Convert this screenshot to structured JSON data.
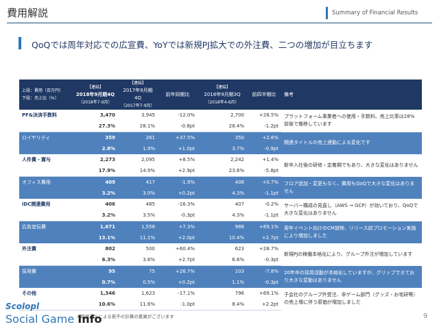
{
  "header": {
    "title": "費用解説",
    "summary_label": "Summary of Financial Results"
  },
  "headline": "QoQでは周年対応での広宣費、YoYでは新規PJ拡大での外注費、二つの増加が目立ちます",
  "table": {
    "columns": {
      "label_line1": "上段：費用（百万円）",
      "label_line2": "下段：売上比（%）",
      "c1_tag": "【連結】",
      "c1_title": "2018年9月期4Q",
      "c1_sub": "（2018年7-9月）",
      "c2_tag": "【連結】",
      "c2_title": "2017年9月期4Q",
      "c2_sub": "（2017年7-9月）",
      "c3_title": "前年同期比",
      "c4_tag": "【連結】",
      "c4_title": "2018年9月期3Q",
      "c4_sub": "（2018年4-6月）",
      "c5_title": "前四半期比",
      "c6_title": "備考"
    },
    "rows": [
      {
        "name": "PF&決済手数料",
        "cur": "3,470",
        "cur_pct": "27.3%",
        "prev": "3,945",
        "prev_pct": "28.1%",
        "yoy": "-12.0%",
        "yoy_pt": "-0.8pt",
        "q3": "2,700",
        "q3_pct": "28.4%",
        "qoq": "+28.5%",
        "qoq_pt": "-1.2pt",
        "note": "プラットフォーム事業者への使用・手数料、売上比率は28%前後で推移しています"
      },
      {
        "name": "ロイヤリティ",
        "cur": "359",
        "cur_pct": "2.8%",
        "prev": "261",
        "prev_pct": "1.9%",
        "yoy": "+37.5%",
        "yoy_pt": "+1.0pt",
        "q3": "350",
        "q3_pct": "3.7%",
        "qoq": "+2.6%",
        "qoq_pt": "-0.9pt",
        "note": "開連タイトルの売上連動による変化です"
      },
      {
        "name": "人件費・賞与",
        "cur": "2,273",
        "cur_pct": "17.9%",
        "prev": "2,095",
        "prev_pct": "14.9%",
        "yoy": "+8.5%",
        "yoy_pt": "+2.9pt",
        "q3": "2,242",
        "q3_pct": "23.6%",
        "qoq": "+1.4%",
        "qoq_pt": "-5.8pt",
        "note": "新卒入社後の研修・定着期でもあり、大きな変化はありません"
      },
      {
        "name": "オフィス費用",
        "cur": "409",
        "cur_pct": "3.2%",
        "prev": "417",
        "prev_pct": "3.0%",
        "yoy": "-1.9%",
        "yoy_pt": "+0.2pt",
        "q3": "406",
        "q3_pct": "4.3%",
        "qoq": "+0.7%",
        "qoq_pt": "-1.1pt",
        "note": "フロア追加・変更もなく、費用もQoQで大きな変化はありません"
      },
      {
        "name": "iDC関連費用",
        "cur": "406",
        "cur_pct": "3.2%",
        "prev": "485",
        "prev_pct": "3.5%",
        "yoy": "-16.3%",
        "yoy_pt": "-0.3pt",
        "q3": "407",
        "q3_pct": "4.3%",
        "qoq": "-0.2%",
        "qoq_pt": "-1.1pt",
        "note": "サーバー構成の見直し（AWS → GCP）が効いており、QoQで大きな変化はありません"
      },
      {
        "name": "広告宣伝費",
        "cur": "1,671",
        "cur_pct": "13.1%",
        "prev": "1,558",
        "prev_pct": "11.1%",
        "yoy": "+7.3%",
        "yoy_pt": "+2.0pt",
        "q3": "988",
        "q3_pct": "10.4%",
        "qoq": "+69.1%",
        "qoq_pt": "+2.7pt",
        "note": "周年イベント向けのCM放映、リリース前プロモーション実施により増加しました"
      },
      {
        "name": "外注費",
        "cur": "802",
        "cur_pct": "6.3%",
        "prev": "500",
        "prev_pct": "3.6%",
        "yoy": "+60.4%",
        "yoy_pt": "+2.7pt",
        "q3": "623",
        "q3_pct": "6.6%",
        "qoq": "+28.7%",
        "qoq_pt": "-0.3pt",
        "note": "新規PJの稼働本格化により、グループ外注が増加しています"
      },
      {
        "name": "採用費",
        "cur": "95",
        "cur_pct": "0.7%",
        "prev": "75",
        "prev_pct": "0.5%",
        "yoy": "+26.7%",
        "yoy_pt": "+0.2pt",
        "q3": "103",
        "q3_pct": "1.1%",
        "qoq": "-7.8%",
        "qoq_pt": "-0.3pt",
        "note": "20年卒の採用活動が本格化していますが、グリップできており大きな変動はありません"
      },
      {
        "name": "その他",
        "cur": "1,346",
        "cur_pct": "10.6%",
        "prev": "1,623",
        "prev_pct": "11.6%",
        "yoy": "-17.1%",
        "yoy_pt": "-1.0pt",
        "q3": "796",
        "q3_pct": "8.4%",
        "qoq": "+69.1%",
        "qoq_pt": "+2.2pt",
        "note": "子会社のグループ外受注、非ゲーム部門（グッズ・お宅研等）の売上増に伴う原価が増加しました"
      }
    ]
  },
  "footnote": "※四捨五入による若干の計算の差異がございます",
  "page_number": "9",
  "logo": {
    "top": "Scolopl",
    "word1": "Social Game ",
    "word2": "Info"
  }
}
